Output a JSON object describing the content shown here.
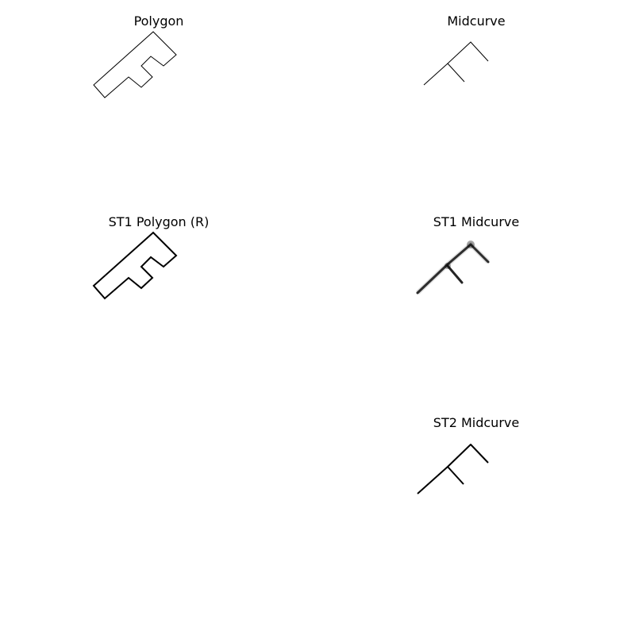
{
  "panels": {
    "polygon": {
      "title": "Polygon"
    },
    "midcurve": {
      "title": "Midcurve"
    },
    "st1_polygon": {
      "title": "ST1 Polygon (R)"
    },
    "st1_midcurve": {
      "title": "ST1 Midcurve"
    },
    "st2_midcurve": {
      "title": "ST2 Midcurve"
    }
  },
  "colors": {
    "stroke": "#000000",
    "background": "#ffffff"
  }
}
